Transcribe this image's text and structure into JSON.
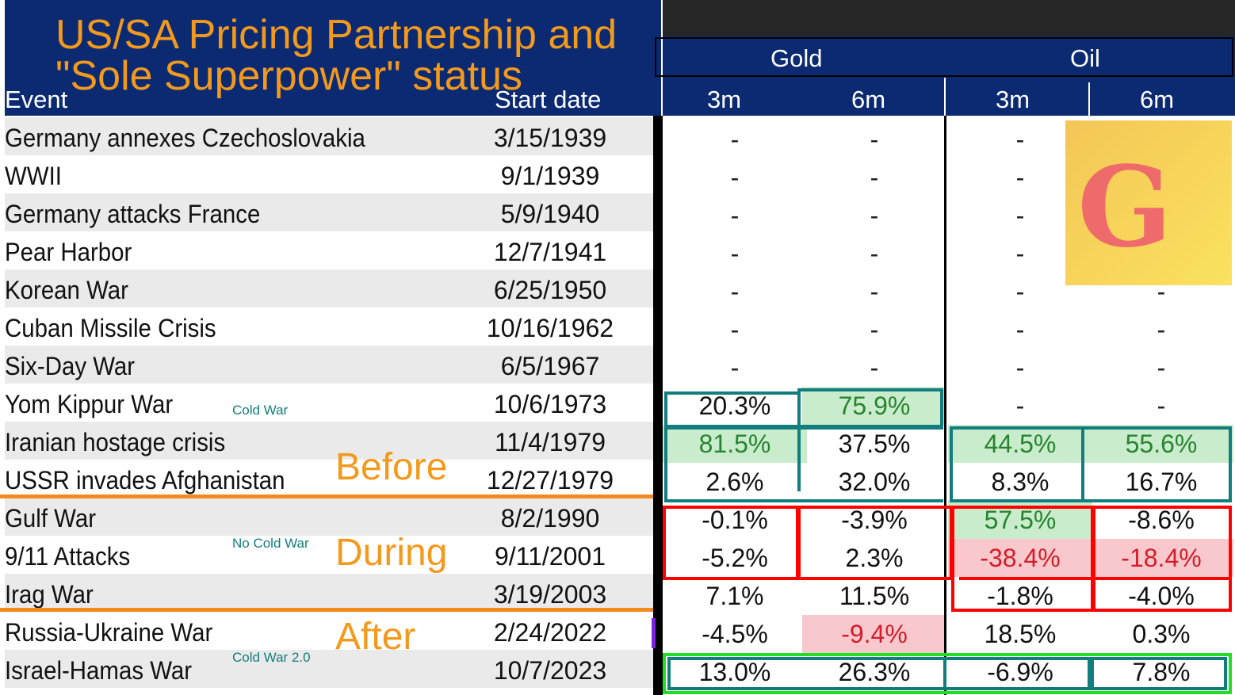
{
  "title": {
    "line1": "US/SA Pricing Partnership and",
    "line2": "\"Sole Superpower\" status"
  },
  "columns": {
    "event": "Event",
    "start_date": "Start date"
  },
  "groups": {
    "gold": "Gold",
    "oil": "Oil"
  },
  "subcols": {
    "gold_3m": "3m",
    "gold_6m": "6m",
    "oil_3m": "3m",
    "oil_6m": "6m"
  },
  "rows": [
    {
      "event": "Germany annexes Czechoslovakia",
      "date": "3/15/1939",
      "gold3": "-",
      "gold6": "-",
      "oil3": "-",
      "oil6": "-"
    },
    {
      "event": "WWII",
      "date": "9/1/1939",
      "gold3": "-",
      "gold6": "-",
      "oil3": "-",
      "oil6": "-"
    },
    {
      "event": "Germany attacks France",
      "date": "5/9/1940",
      "gold3": "-",
      "gold6": "-",
      "oil3": "-",
      "oil6": "-"
    },
    {
      "event": "Pear Harbor",
      "date": "12/7/1941",
      "gold3": "-",
      "gold6": "-",
      "oil3": "-",
      "oil6": "-"
    },
    {
      "event": "Korean War",
      "date": "6/25/1950",
      "gold3": "-",
      "gold6": "-",
      "oil3": "-",
      "oil6": "-"
    },
    {
      "event": "Cuban Missile Crisis",
      "date": "10/16/1962",
      "gold3": "-",
      "gold6": "-",
      "oil3": "-",
      "oil6": "-"
    },
    {
      "event": "Six-Day War",
      "date": "6/5/1967",
      "gold3": "-",
      "gold6": "-",
      "oil3": "-",
      "oil6": "-"
    },
    {
      "event": "Yom Kippur War",
      "date": "10/6/1973",
      "gold3": "20.3%",
      "gold6": "75.9%",
      "oil3": "-",
      "oil6": "-"
    },
    {
      "event": "Iranian hostage crisis",
      "date": "11/4/1979",
      "gold3": "81.5%",
      "gold6": "37.5%",
      "oil3": "44.5%",
      "oil6": "55.6%"
    },
    {
      "event": "USSR invades Afghanistan",
      "date": "12/27/1979",
      "gold3": "2.6%",
      "gold6": "32.0%",
      "oil3": "8.3%",
      "oil6": "16.7%"
    },
    {
      "event": "Gulf War",
      "date": "8/2/1990",
      "gold3": "-0.1%",
      "gold6": "-3.9%",
      "oil3": "57.5%",
      "oil6": "-8.6%"
    },
    {
      "event": "9/11 Attacks",
      "date": "9/11/2001",
      "gold3": "-5.2%",
      "gold6": "2.3%",
      "oil3": "-38.4%",
      "oil6": "-18.4%"
    },
    {
      "event": "Irag War",
      "date": "3/19/2003",
      "gold3": "7.1%",
      "gold6": "11.5%",
      "oil3": "-1.8%",
      "oil6": "-4.0%"
    },
    {
      "event": "Russia-Ukraine War",
      "date": "2/24/2022",
      "gold3": "-4.5%",
      "gold6": "-9.4%",
      "oil3": "18.5%",
      "oil6": "0.3%"
    },
    {
      "event": "Israel-Hamas War",
      "date": "10/7/2023",
      "gold3": "13.0%",
      "gold6": "26.3%",
      "oil3": "-6.9%",
      "oil6": "7.8%"
    }
  ],
  "eras": {
    "before": "Before",
    "during": "During",
    "after": "After"
  },
  "tags": {
    "cold_war": "Cold War",
    "no_cold_war": "No Cold War",
    "cold_war_2": "Cold War 2.0"
  },
  "logo": {
    "letter": "G"
  },
  "colors": {
    "header_blue": "#0b2a72",
    "title_orange": "#f39a1d",
    "highlight_green": "#c9eccd",
    "highlight_pink": "#f9c8cc",
    "box_teal": "#127d7d",
    "box_red": "#ff0000",
    "box_lime": "#22dd22"
  }
}
